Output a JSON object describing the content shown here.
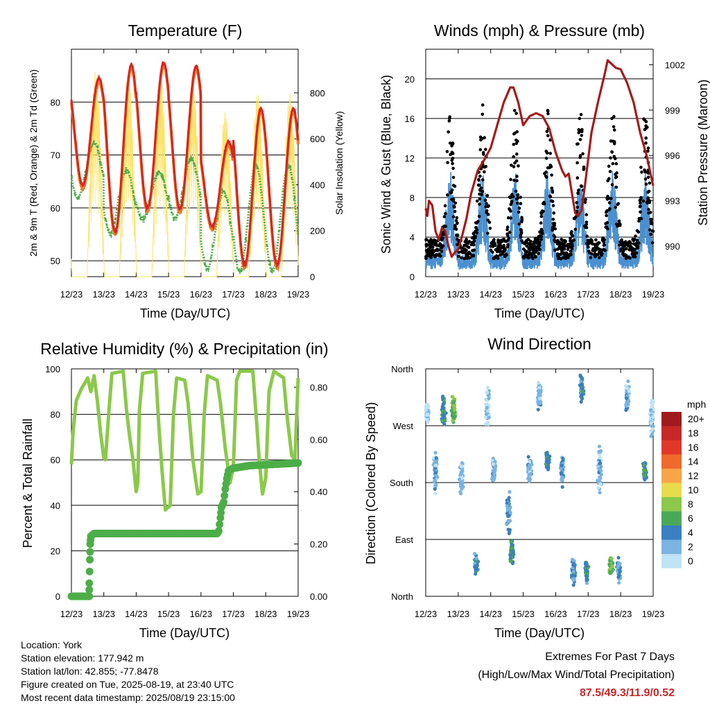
{
  "chart_data": [
    {
      "id": "temperature",
      "type": "line",
      "title": "Temperature (F)",
      "xlabel": "Time (Day/UTC)",
      "ylabel": "2m & 9m T (Red, Orange) & 2m Td (Green)",
      "y2label": "Solar Insolation (Yellow)",
      "x_ticks": [
        "12/23",
        "13/23",
        "14/23",
        "15/23",
        "16/23",
        "17/23",
        "18/23",
        "19/23"
      ],
      "ylim": [
        47,
        90
      ],
      "y_ticks": [
        "50",
        "60",
        "70",
        "80"
      ],
      "y2lim": [
        0,
        990
      ],
      "y2_ticks": [
        "0",
        "200",
        "400",
        "600",
        "800"
      ],
      "colors": {
        "t2m": "#d7261e",
        "t9m": "#f07a2a",
        "td": "#4cae48",
        "solar": "#fce36b"
      },
      "series_daily_extremes": {
        "t2m_max": [
          84.5,
          87.1,
          87.5,
          86.8,
          72.5,
          78.8
        ],
        "t2m_min": [
          64.3,
          55.6,
          60.0,
          59.8,
          56.5,
          49.3
        ],
        "td_max": [
          72.2,
          67.2,
          66.8,
          69.3,
          63.0,
          68.0
        ],
        "td_min": [
          62.0,
          55.3,
          57.8,
          58.0,
          48.7,
          48.0
        ],
        "solar_daily_peak": [
          900,
          880,
          870,
          860,
          720,
          800
        ]
      }
    },
    {
      "id": "winds",
      "type": "scatter",
      "title": "Winds (mph) & Pressure (mb)",
      "xlabel": "Time (Day/UTC)",
      "ylabel": "Sonic Wind & Gust (Blue, Black)",
      "y2label": "Station Pressure (Maroon)",
      "x_ticks": [
        "12/23",
        "13/23",
        "14/23",
        "15/23",
        "16/23",
        "17/23",
        "18/23",
        "19/23"
      ],
      "ylim": [
        0,
        23
      ],
      "y_ticks": [
        "0",
        "4",
        "8",
        "12",
        "16",
        "20"
      ],
      "y2_ticks": [
        "990",
        "993",
        "996",
        "999",
        "1002"
      ],
      "y2_tick_values": [
        990,
        993,
        996,
        999,
        1002
      ],
      "colors": {
        "wind": "#4a90d0",
        "gust": "#000000",
        "pressure": "#a31c1c"
      },
      "pressure_mb": [
        {
          "x": 0.0,
          "y": 992.5
        },
        {
          "x": 0.05,
          "y": 992.0
        },
        {
          "x": 0.1,
          "y": 993.0
        },
        {
          "x": 0.2,
          "y": 992.7
        },
        {
          "x": 0.3,
          "y": 991.0
        },
        {
          "x": 0.4,
          "y": 990.4
        },
        {
          "x": 0.5,
          "y": 991.2
        },
        {
          "x": 0.6,
          "y": 991.0
        },
        {
          "x": 0.7,
          "y": 990.0
        },
        {
          "x": 0.8,
          "y": 989.3
        },
        {
          "x": 0.9,
          "y": 989.6
        },
        {
          "x": 1.0,
          "y": 989.8
        },
        {
          "x": 1.1,
          "y": 990.5
        },
        {
          "x": 1.25,
          "y": 991.8
        },
        {
          "x": 1.4,
          "y": 993.5
        },
        {
          "x": 1.6,
          "y": 995.0
        },
        {
          "x": 1.8,
          "y": 995.7
        },
        {
          "x": 2.0,
          "y": 996.5
        },
        {
          "x": 2.2,
          "y": 998.0
        },
        {
          "x": 2.4,
          "y": 999.5
        },
        {
          "x": 2.6,
          "y": 1000.5
        },
        {
          "x": 2.7,
          "y": 1000.5
        },
        {
          "x": 2.85,
          "y": 999.5
        },
        {
          "x": 3.0,
          "y": 998.0
        },
        {
          "x": 3.2,
          "y": 998.6
        },
        {
          "x": 3.4,
          "y": 998.8
        },
        {
          "x": 3.6,
          "y": 998.6
        },
        {
          "x": 3.8,
          "y": 997.8
        },
        {
          "x": 4.0,
          "y": 996.2
        },
        {
          "x": 4.2,
          "y": 995.0
        },
        {
          "x": 4.3,
          "y": 994.6
        },
        {
          "x": 4.4,
          "y": 994.8
        },
        {
          "x": 4.5,
          "y": 993.5
        },
        {
          "x": 4.6,
          "y": 992.2
        },
        {
          "x": 4.7,
          "y": 992.0
        },
        {
          "x": 4.8,
          "y": 992.4
        },
        {
          "x": 4.9,
          "y": 994.0
        },
        {
          "x": 5.1,
          "y": 997.5
        },
        {
          "x": 5.3,
          "y": 999.5
        },
        {
          "x": 5.5,
          "y": 1001.3
        },
        {
          "x": 5.6,
          "y": 1002.3
        },
        {
          "x": 5.75,
          "y": 1002.0
        },
        {
          "x": 5.85,
          "y": 1001.8
        },
        {
          "x": 6.0,
          "y": 1001.7
        },
        {
          "x": 6.2,
          "y": 1000.8
        },
        {
          "x": 6.4,
          "y": 999.5
        },
        {
          "x": 6.6,
          "y": 997.5
        },
        {
          "x": 6.8,
          "y": 996.0
        },
        {
          "x": 7.0,
          "y": 994.0
        }
      ]
    },
    {
      "id": "humidity",
      "type": "line",
      "title": "Relative Humidity (%) & Precipitation (in)",
      "xlabel": "Time (Day/UTC)",
      "ylabel": "Percent & Total Rainfall",
      "x_ticks": [
        "12/23",
        "13/23",
        "14/23",
        "15/23",
        "16/23",
        "17/23",
        "18/23",
        "19/23"
      ],
      "ylim": [
        0,
        100
      ],
      "y_ticks": [
        "0",
        "20",
        "40",
        "60",
        "80",
        "100"
      ],
      "y2lim": [
        0,
        0.87
      ],
      "y2_ticks": [
        "0.00",
        "0.20",
        "0.40",
        "0.60",
        "0.80"
      ],
      "colors": {
        "rh": "#8cc84b",
        "precip": "#4cae48"
      },
      "rh": [
        {
          "x": 0.0,
          "y": 58
        },
        {
          "x": 0.05,
          "y": 72
        },
        {
          "x": 0.15,
          "y": 86
        },
        {
          "x": 0.3,
          "y": 91
        },
        {
          "x": 0.5,
          "y": 96
        },
        {
          "x": 0.6,
          "y": 90
        },
        {
          "x": 0.7,
          "y": 97
        },
        {
          "x": 0.8,
          "y": 86
        },
        {
          "x": 0.9,
          "y": 72
        },
        {
          "x": 1.0,
          "y": 61
        },
        {
          "x": 1.05,
          "y": 60
        },
        {
          "x": 1.15,
          "y": 80
        },
        {
          "x": 1.25,
          "y": 98
        },
        {
          "x": 1.6,
          "y": 99
        },
        {
          "x": 1.7,
          "y": 82
        },
        {
          "x": 1.8,
          "y": 70
        },
        {
          "x": 1.9,
          "y": 60
        },
        {
          "x": 2.0,
          "y": 46
        },
        {
          "x": 2.05,
          "y": 50
        },
        {
          "x": 2.1,
          "y": 82
        },
        {
          "x": 2.2,
          "y": 98
        },
        {
          "x": 2.6,
          "y": 99
        },
        {
          "x": 2.7,
          "y": 75
        },
        {
          "x": 2.8,
          "y": 55
        },
        {
          "x": 2.9,
          "y": 38
        },
        {
          "x": 3.05,
          "y": 40
        },
        {
          "x": 3.15,
          "y": 80
        },
        {
          "x": 3.25,
          "y": 96
        },
        {
          "x": 3.5,
          "y": 95
        },
        {
          "x": 3.6,
          "y": 85
        },
        {
          "x": 3.75,
          "y": 60
        },
        {
          "x": 3.9,
          "y": 45
        },
        {
          "x": 4.0,
          "y": 46
        },
        {
          "x": 4.1,
          "y": 80
        },
        {
          "x": 4.2,
          "y": 97
        },
        {
          "x": 4.5,
          "y": 95
        },
        {
          "x": 4.6,
          "y": 85
        },
        {
          "x": 4.75,
          "y": 65
        },
        {
          "x": 4.9,
          "y": 50
        },
        {
          "x": 5.0,
          "y": 57
        },
        {
          "x": 5.1,
          "y": 95
        },
        {
          "x": 5.2,
          "y": 99
        },
        {
          "x": 5.6,
          "y": 99
        },
        {
          "x": 5.7,
          "y": 80
        },
        {
          "x": 5.8,
          "y": 60
        },
        {
          "x": 5.9,
          "y": 45
        },
        {
          "x": 6.0,
          "y": 52
        },
        {
          "x": 6.1,
          "y": 90
        },
        {
          "x": 6.25,
          "y": 99
        },
        {
          "x": 6.55,
          "y": 96
        },
        {
          "x": 6.65,
          "y": 80
        },
        {
          "x": 6.8,
          "y": 62
        },
        {
          "x": 6.9,
          "y": 60
        },
        {
          "x": 6.97,
          "y": 85
        },
        {
          "x": 7.0,
          "y": 96
        }
      ],
      "precip_in": [
        {
          "x": 0.0,
          "y": 0.0
        },
        {
          "x": 0.55,
          "y": 0.0
        },
        {
          "x": 0.55,
          "y": 0.05
        },
        {
          "x": 0.57,
          "y": 0.14
        },
        {
          "x": 0.58,
          "y": 0.2
        },
        {
          "x": 0.6,
          "y": 0.23
        },
        {
          "x": 0.7,
          "y": 0.24
        },
        {
          "x": 4.5,
          "y": 0.24
        },
        {
          "x": 4.55,
          "y": 0.25
        },
        {
          "x": 4.6,
          "y": 0.3
        },
        {
          "x": 4.63,
          "y": 0.34
        },
        {
          "x": 4.7,
          "y": 0.36
        },
        {
          "x": 4.75,
          "y": 0.41
        },
        {
          "x": 4.8,
          "y": 0.45
        },
        {
          "x": 4.85,
          "y": 0.48
        },
        {
          "x": 5.0,
          "y": 0.49
        },
        {
          "x": 5.5,
          "y": 0.5
        },
        {
          "x": 7.0,
          "y": 0.51
        }
      ]
    },
    {
      "id": "direction",
      "type": "scatter",
      "title": "Wind Direction",
      "xlabel": "Time (Day/UTC)",
      "ylabel": "Direction (Colored By Speed)",
      "x_ticks": [
        "12/23",
        "13/23",
        "14/23",
        "15/23",
        "16/23",
        "17/23",
        "18/23",
        "19/23"
      ],
      "y_ticks": [
        "North",
        "East",
        "South",
        "West",
        "North"
      ],
      "ylim": [
        0,
        360
      ],
      "legend": {
        "title": "mph",
        "labels": [
          "20+",
          "18",
          "16",
          "14",
          "12",
          "10",
          "8",
          "6",
          "4",
          "2",
          "0"
        ],
        "colors": [
          "#9e1a1c",
          "#c62828",
          "#e0392a",
          "#f06a2c",
          "#f8a54a",
          "#e8dc4c",
          "#8cc84b",
          "#4aa85a",
          "#3a7fc0",
          "#7ab4e0",
          "#bfe3f7"
        ]
      },
      "clusters": [
        {
          "x": 0.05,
          "dir": 290,
          "spread": 25,
          "speed": 2
        },
        {
          "x": 0.3,
          "dir": 200,
          "spread": 40,
          "speed": 3
        },
        {
          "x": 0.55,
          "dir": 290,
          "spread": 30,
          "speed": 6
        },
        {
          "x": 0.85,
          "dir": 300,
          "spread": 35,
          "speed": 8
        },
        {
          "x": 1.1,
          "dir": 190,
          "spread": 40,
          "speed": 3
        },
        {
          "x": 1.55,
          "dir": 50,
          "spread": 20,
          "speed": 5
        },
        {
          "x": 1.9,
          "dir": 300,
          "spread": 40,
          "speed": 2
        },
        {
          "x": 2.1,
          "dir": 200,
          "spread": 30,
          "speed": 3
        },
        {
          "x": 2.55,
          "dir": 130,
          "spread": 40,
          "speed": 4
        },
        {
          "x": 2.65,
          "dir": 70,
          "spread": 25,
          "speed": 6
        },
        {
          "x": 3.2,
          "dir": 200,
          "spread": 25,
          "speed": 3
        },
        {
          "x": 3.5,
          "dir": 320,
          "spread": 30,
          "speed": 3
        },
        {
          "x": 3.75,
          "dir": 215,
          "spread": 20,
          "speed": 5
        },
        {
          "x": 4.2,
          "dir": 200,
          "spread": 30,
          "speed": 4
        },
        {
          "x": 4.55,
          "dir": 40,
          "spread": 25,
          "speed": 4
        },
        {
          "x": 4.8,
          "dir": 330,
          "spread": 30,
          "speed": 5
        },
        {
          "x": 4.95,
          "dir": 40,
          "spread": 25,
          "speed": 6
        },
        {
          "x": 5.35,
          "dir": 200,
          "spread": 50,
          "speed": 3
        },
        {
          "x": 5.7,
          "dir": 50,
          "spread": 20,
          "speed": 8
        },
        {
          "x": 5.95,
          "dir": 40,
          "spread": 25,
          "speed": 4
        },
        {
          "x": 6.2,
          "dir": 310,
          "spread": 35,
          "speed": 3
        },
        {
          "x": 6.75,
          "dir": 195,
          "spread": 20,
          "speed": 6
        },
        {
          "x": 6.97,
          "dir": 280,
          "spread": 40,
          "speed": 2
        }
      ]
    }
  ],
  "station": {
    "location": "Location: York",
    "elevation": "Station elevation: 177.942 m",
    "latlon": "Station lat/lon: 42.855; -77.8478",
    "created": "Figure created on Tue, 2025-08-19, at 23:40 UTC",
    "recent": "Most recent data timestamp: 2025/08/19 23:15:00"
  },
  "extremes": {
    "title": "Extremes For Past 7 Days",
    "subtitle": "(High/Low/Max Wind/Total Precipitation)",
    "values": "87.5/49.3/11.9/0.52",
    "color": "#c62828"
  }
}
